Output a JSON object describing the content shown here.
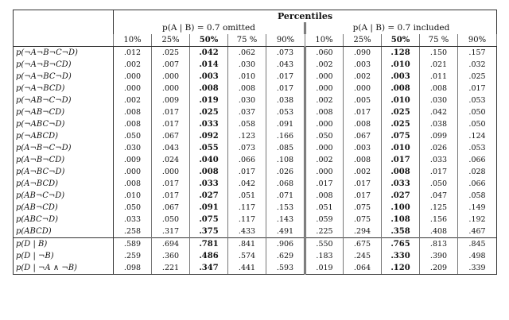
{
  "title": "Percentiles",
  "groups": [
    "p(A | B) = 0.7 omitted",
    "p(A | B) = 0.7 included"
  ],
  "percentile_headers": [
    "10%",
    "25%",
    "50%",
    "75 %",
    "90%"
  ],
  "rows": [
    {
      "label": "p(¬A¬B¬C¬D)",
      "omitted": [
        ".012",
        ".025",
        ".042",
        ".062",
        ".073"
      ],
      "included": [
        ".060",
        ".090",
        ".128",
        ".150",
        ".157"
      ]
    },
    {
      "label": "p(¬A¬B¬CD)",
      "omitted": [
        ".002",
        ".007",
        ".014",
        ".030",
        ".043"
      ],
      "included": [
        ".002",
        ".003",
        ".010",
        ".021",
        ".032"
      ]
    },
    {
      "label": "p(¬A¬BC¬D)",
      "omitted": [
        ".000",
        ".000",
        ".003",
        ".010",
        ".017"
      ],
      "included": [
        ".000",
        ".002",
        ".003",
        ".011",
        ".025"
      ]
    },
    {
      "label": "p(¬A¬BCD)",
      "omitted": [
        ".000",
        ".000",
        ".008",
        ".008",
        ".017"
      ],
      "included": [
        ".000",
        ".000",
        ".008",
        ".008",
        ".017"
      ]
    },
    {
      "label": "p(¬AB¬C¬D)",
      "omitted": [
        ".002",
        ".009",
        ".019",
        ".030",
        ".038"
      ],
      "included": [
        ".002",
        ".005",
        ".010",
        ".030",
        ".053"
      ]
    },
    {
      "label": "p(¬AB¬CD)",
      "omitted": [
        ".008",
        ".017",
        ".025",
        ".037",
        ".053"
      ],
      "included": [
        ".008",
        ".017",
        ".025",
        ".042",
        ".050"
      ]
    },
    {
      "label": "p(¬ABC¬D)",
      "omitted": [
        ".008",
        ".017",
        ".033",
        ".058",
        ".091"
      ],
      "included": [
        ".000",
        ".008",
        ".025",
        ".038",
        ".050"
      ]
    },
    {
      "label": "p(¬ABCD)",
      "omitted": [
        ".050",
        ".067",
        ".092",
        ".123",
        ".166"
      ],
      "included": [
        ".050",
        ".067",
        ".075",
        ".099",
        ".124"
      ]
    },
    {
      "label": "p(A¬B¬C¬D)",
      "omitted": [
        ".030",
        ".043",
        ".055",
        ".073",
        ".085"
      ],
      "included": [
        ".000",
        ".003",
        ".010",
        ".026",
        ".053"
      ]
    },
    {
      "label": "p(A¬B¬CD)",
      "omitted": [
        ".009",
        ".024",
        ".040",
        ".066",
        ".108"
      ],
      "included": [
        ".002",
        ".008",
        ".017",
        ".033",
        ".066"
      ]
    },
    {
      "label": "p(A¬BC¬D)",
      "omitted": [
        ".000",
        ".000",
        ".008",
        ".017",
        ".026"
      ],
      "included": [
        ".000",
        ".002",
        ".008",
        ".017",
        ".028"
      ]
    },
    {
      "label": "p(A¬BCD)",
      "omitted": [
        ".008",
        ".017",
        ".033",
        ".042",
        ".068"
      ],
      "included": [
        ".017",
        ".017",
        ".033",
        ".050",
        ".066"
      ]
    },
    {
      "label": "p(AB¬C¬D)",
      "omitted": [
        ".010",
        ".017",
        ".027",
        ".051",
        ".071"
      ],
      "included": [
        ".008",
        ".017",
        ".027",
        ".047",
        ".058"
      ]
    },
    {
      "label": "p(AB¬CD)",
      "omitted": [
        ".050",
        ".067",
        ".091",
        ".117",
        ".153"
      ],
      "included": [
        ".051",
        ".075",
        ".100",
        ".125",
        ".149"
      ]
    },
    {
      "label": "p(ABC¬D)",
      "omitted": [
        ".033",
        ".050",
        ".075",
        ".117",
        ".143"
      ],
      "included": [
        ".059",
        ".075",
        ".108",
        ".156",
        ".192"
      ]
    },
    {
      "label": "p(ABCD)",
      "omitted": [
        ".258",
        ".317",
        ".375",
        ".433",
        ".491"
      ],
      "included": [
        ".225",
        ".294",
        ".358",
        ".408",
        ".467"
      ]
    }
  ],
  "cond_rows": [
    {
      "label": "p(D | B)",
      "omitted": [
        ".589",
        ".694",
        ".781",
        ".841",
        ".906"
      ],
      "included": [
        ".550",
        ".675",
        ".765",
        ".813",
        ".845"
      ]
    },
    {
      "label": "p(D | ¬B)",
      "omitted": [
        ".259",
        ".360",
        ".486",
        ".574",
        ".629"
      ],
      "included": [
        ".183",
        ".245",
        ".330",
        ".390",
        ".498"
      ]
    },
    {
      "label": "p(D | ¬A ∧ ¬B)",
      "omitted": [
        ".098",
        ".221",
        ".347",
        ".441",
        ".593"
      ],
      "included": [
        ".019",
        ".064",
        ".120",
        ".209",
        ".339"
      ]
    }
  ]
}
